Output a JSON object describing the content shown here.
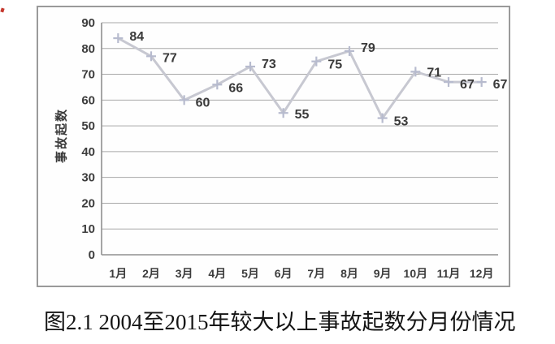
{
  "page": {
    "caption": "图2.1 2004至2015年较大以上事故起数分月份情况"
  },
  "chart_data": {
    "type": "line",
    "title": "",
    "xlabel": "",
    "ylabel": "事故起数",
    "categories": [
      "1月",
      "2月",
      "3月",
      "4月",
      "5月",
      "6月",
      "7月",
      "8月",
      "9月",
      "10月",
      "11月",
      "12月"
    ],
    "values": [
      84,
      77,
      60,
      66,
      73,
      55,
      75,
      79,
      53,
      71,
      67,
      67
    ],
    "ylim": [
      0,
      90
    ],
    "yticks": [
      0,
      10,
      20,
      30,
      40,
      50,
      60,
      70,
      80,
      90
    ],
    "grid": "horizontal",
    "legend": "none",
    "marker": "plus",
    "label_dy": [
      -2,
      2,
      3,
      4,
      -3,
      2,
      4,
      -4,
      4,
      1,
      3,
      3
    ],
    "colors": {
      "line": "#c7c8d1",
      "marker": "#b7bbce",
      "grid": "#a8a8a8",
      "axis": "#8f8f8f",
      "text": "#3c3c3c",
      "frame": "#9a9a9a",
      "caption": "#141414",
      "red_mark": "#c5392f"
    }
  }
}
